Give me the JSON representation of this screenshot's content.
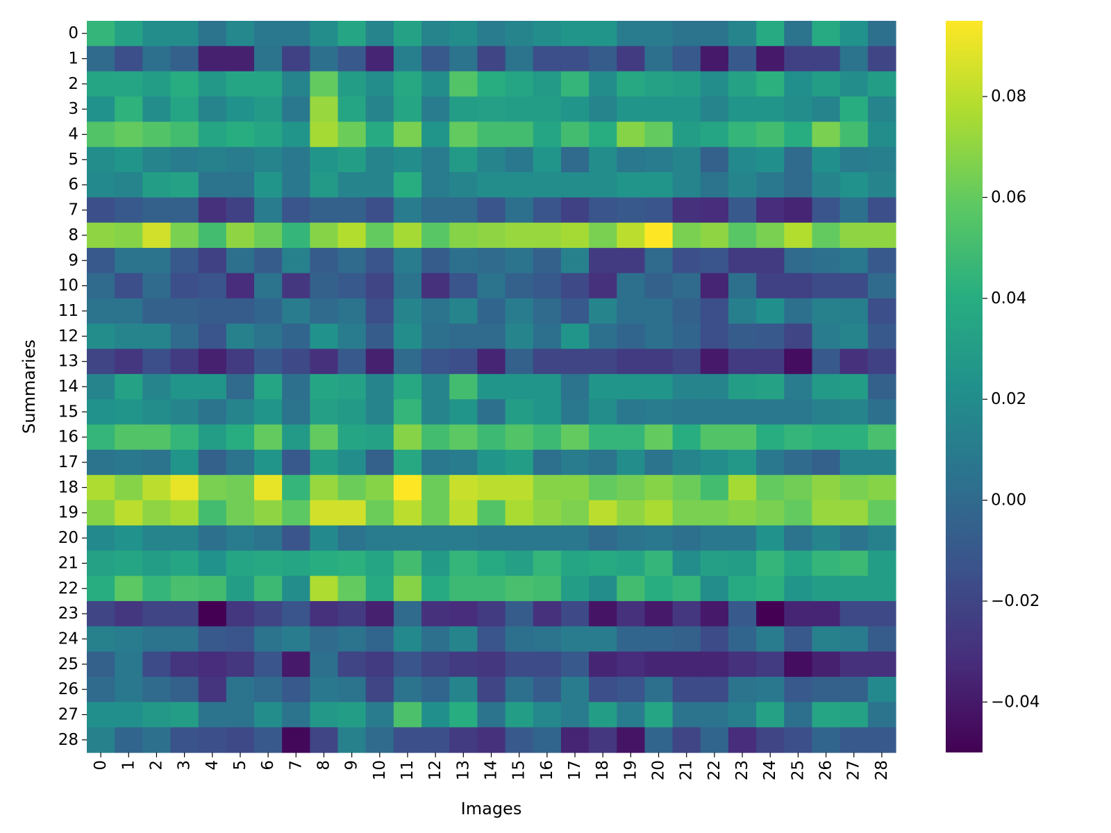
{
  "chart_data": {
    "type": "heatmap",
    "title": "",
    "xlabel": "Images",
    "ylabel": "Summaries",
    "x_categories": [
      "0",
      "1",
      "2",
      "3",
      "4",
      "5",
      "6",
      "7",
      "8",
      "9",
      "10",
      "11",
      "12",
      "13",
      "14",
      "15",
      "16",
      "17",
      "18",
      "19",
      "20",
      "21",
      "22",
      "23",
      "24",
      "25",
      "26",
      "27",
      "28"
    ],
    "y_categories": [
      "0",
      "1",
      "2",
      "3",
      "4",
      "5",
      "6",
      "7",
      "8",
      "9",
      "10",
      "11",
      "12",
      "13",
      "14",
      "15",
      "16",
      "17",
      "18",
      "19",
      "20",
      "21",
      "22",
      "23",
      "24",
      "25",
      "26",
      "27",
      "28"
    ],
    "colormap": "viridis",
    "vmin": -0.05,
    "vmax": 0.095,
    "colorbar_ticks": [
      0.08,
      0.06,
      0.04,
      0.02,
      0.0,
      -0.02,
      -0.04
    ],
    "colorbar_tick_labels": [
      "0.08",
      "0.06",
      "0.04",
      "0.02",
      "0.00",
      "−0.02",
      "−0.04"
    ],
    "values": [
      [
        0.045,
        0.033,
        0.02,
        0.02,
        0.005,
        0.017,
        0.008,
        0.008,
        0.02,
        0.035,
        0.015,
        0.033,
        0.015,
        0.02,
        0.01,
        0.015,
        0.02,
        0.025,
        0.025,
        0.01,
        0.01,
        0.005,
        0.005,
        0.015,
        0.038,
        0.005,
        0.038,
        0.023,
        0.003
      ],
      [
        0.0,
        -0.015,
        0.003,
        -0.005,
        -0.037,
        -0.037,
        0.005,
        -0.022,
        0.003,
        -0.01,
        -0.035,
        0.012,
        -0.01,
        0.005,
        -0.02,
        0.005,
        -0.015,
        -0.015,
        -0.008,
        -0.025,
        0.003,
        -0.01,
        -0.04,
        -0.01,
        -0.04,
        -0.022,
        -0.022,
        0.005,
        -0.02
      ],
      [
        0.035,
        0.035,
        0.03,
        0.04,
        0.027,
        0.035,
        0.035,
        0.015,
        0.06,
        0.03,
        0.02,
        0.037,
        0.02,
        0.055,
        0.04,
        0.035,
        0.028,
        0.045,
        0.02,
        0.037,
        0.033,
        0.03,
        0.02,
        0.033,
        0.042,
        0.022,
        0.03,
        0.02,
        0.03
      ],
      [
        0.023,
        0.043,
        0.02,
        0.035,
        0.015,
        0.023,
        0.028,
        0.008,
        0.072,
        0.035,
        0.015,
        0.035,
        0.01,
        0.03,
        0.032,
        0.03,
        0.03,
        0.025,
        0.015,
        0.025,
        0.025,
        0.025,
        0.015,
        0.025,
        0.025,
        0.02,
        0.015,
        0.04,
        0.015
      ],
      [
        0.055,
        0.06,
        0.055,
        0.05,
        0.035,
        0.04,
        0.035,
        0.025,
        0.075,
        0.062,
        0.038,
        0.065,
        0.025,
        0.06,
        0.05,
        0.05,
        0.035,
        0.05,
        0.04,
        0.068,
        0.06,
        0.03,
        0.035,
        0.045,
        0.05,
        0.04,
        0.065,
        0.05,
        0.02
      ],
      [
        0.02,
        0.025,
        0.015,
        0.01,
        0.013,
        0.01,
        0.015,
        0.008,
        0.025,
        0.03,
        0.015,
        0.02,
        0.01,
        0.028,
        0.015,
        0.008,
        0.025,
        0.0,
        0.02,
        0.008,
        0.01,
        0.015,
        -0.005,
        0.018,
        0.022,
        0.0,
        0.022,
        0.01,
        0.012
      ],
      [
        0.018,
        0.015,
        0.03,
        0.033,
        0.005,
        0.005,
        0.025,
        0.008,
        0.028,
        0.015,
        0.015,
        0.04,
        0.01,
        0.015,
        0.02,
        0.02,
        0.02,
        0.02,
        0.02,
        0.025,
        0.025,
        0.015,
        0.005,
        0.015,
        0.008,
        0.0,
        0.015,
        0.023,
        0.015
      ],
      [
        -0.015,
        -0.01,
        -0.005,
        -0.005,
        -0.03,
        -0.022,
        0.01,
        -0.012,
        -0.005,
        -0.005,
        -0.015,
        0.01,
        0.0,
        0.0,
        -0.012,
        0.003,
        -0.012,
        -0.022,
        -0.012,
        -0.01,
        -0.012,
        -0.03,
        -0.032,
        -0.01,
        -0.032,
        -0.035,
        -0.012,
        0.003,
        -0.015
      ],
      [
        0.07,
        0.068,
        0.085,
        0.065,
        0.05,
        0.07,
        0.062,
        0.045,
        0.068,
        0.078,
        0.06,
        0.075,
        0.057,
        0.068,
        0.07,
        0.072,
        0.072,
        0.075,
        0.065,
        0.08,
        0.095,
        0.065,
        0.07,
        0.057,
        0.065,
        0.078,
        0.06,
        0.07,
        0.07
      ],
      [
        -0.01,
        0.005,
        0.005,
        -0.01,
        -0.022,
        0.003,
        -0.008,
        0.013,
        -0.008,
        0.0,
        -0.012,
        0.01,
        -0.008,
        0.003,
        0.0,
        0.005,
        -0.005,
        0.013,
        -0.025,
        -0.025,
        0.0,
        -0.015,
        -0.012,
        -0.025,
        -0.025,
        0.0,
        0.003,
        0.008,
        -0.01
      ],
      [
        0.0,
        -0.015,
        0.0,
        -0.015,
        -0.012,
        -0.032,
        0.005,
        -0.027,
        -0.005,
        -0.01,
        -0.02,
        0.005,
        -0.03,
        -0.012,
        0.005,
        -0.005,
        -0.01,
        -0.018,
        -0.03,
        0.003,
        -0.005,
        0.0,
        -0.035,
        0.003,
        -0.022,
        -0.022,
        -0.017,
        -0.017,
        0.0
      ],
      [
        0.005,
        0.005,
        -0.005,
        -0.005,
        -0.008,
        -0.008,
        -0.003,
        0.01,
        0.0,
        0.005,
        -0.015,
        0.015,
        0.005,
        0.015,
        -0.003,
        0.01,
        0.0,
        -0.01,
        0.015,
        0.003,
        0.003,
        -0.005,
        -0.015,
        0.012,
        0.022,
        0.003,
        0.013,
        0.012,
        -0.015
      ],
      [
        0.02,
        0.015,
        0.015,
        0.0,
        -0.012,
        0.013,
        0.005,
        -0.003,
        0.023,
        0.01,
        -0.008,
        0.02,
        0.003,
        0.0,
        0.0,
        0.015,
        0.003,
        0.025,
        0.003,
        -0.003,
        0.003,
        -0.003,
        -0.015,
        -0.008,
        -0.01,
        -0.02,
        0.01,
        0.015,
        -0.01
      ],
      [
        -0.02,
        -0.027,
        -0.015,
        -0.025,
        -0.037,
        -0.025,
        -0.01,
        -0.018,
        -0.03,
        -0.01,
        -0.037,
        0.0,
        -0.012,
        -0.015,
        -0.035,
        -0.005,
        -0.02,
        -0.02,
        -0.02,
        -0.025,
        -0.025,
        -0.02,
        -0.04,
        -0.025,
        -0.025,
        -0.045,
        -0.01,
        -0.03,
        -0.022
      ],
      [
        0.015,
        0.033,
        0.015,
        0.025,
        0.025,
        0.0,
        0.035,
        0.003,
        0.035,
        0.033,
        0.015,
        0.037,
        0.015,
        0.05,
        0.025,
        0.025,
        0.025,
        0.005,
        0.025,
        0.025,
        0.025,
        0.015,
        0.015,
        0.03,
        0.033,
        0.01,
        0.028,
        0.03,
        -0.005
      ],
      [
        0.023,
        0.025,
        0.02,
        0.015,
        0.005,
        0.015,
        0.025,
        0.005,
        0.032,
        0.028,
        0.015,
        0.045,
        0.015,
        0.025,
        0.003,
        0.03,
        0.025,
        0.008,
        0.02,
        0.008,
        0.01,
        0.008,
        0.008,
        0.008,
        0.008,
        0.008,
        0.013,
        0.015,
        0.003
      ],
      [
        0.045,
        0.055,
        0.055,
        0.045,
        0.03,
        0.04,
        0.06,
        0.028,
        0.06,
        0.035,
        0.033,
        0.068,
        0.05,
        0.058,
        0.048,
        0.055,
        0.048,
        0.06,
        0.045,
        0.045,
        0.06,
        0.04,
        0.055,
        0.055,
        0.04,
        0.045,
        0.042,
        0.042,
        0.052
      ],
      [
        0.005,
        0.008,
        0.005,
        0.025,
        -0.005,
        0.005,
        0.025,
        -0.01,
        0.03,
        0.02,
        -0.005,
        0.037,
        0.008,
        0.01,
        0.025,
        0.03,
        0.003,
        0.01,
        0.005,
        0.02,
        0.005,
        0.015,
        0.02,
        0.027,
        0.008,
        0.0,
        -0.005,
        0.015,
        0.015
      ],
      [
        0.077,
        0.068,
        0.08,
        0.09,
        0.065,
        0.063,
        0.09,
        0.045,
        0.072,
        0.062,
        0.068,
        0.095,
        0.062,
        0.083,
        0.08,
        0.08,
        0.068,
        0.068,
        0.06,
        0.063,
        0.068,
        0.062,
        0.05,
        0.075,
        0.06,
        0.063,
        0.07,
        0.065,
        0.068
      ],
      [
        0.068,
        0.08,
        0.07,
        0.075,
        0.05,
        0.063,
        0.07,
        0.058,
        0.085,
        0.085,
        0.062,
        0.08,
        0.062,
        0.08,
        0.055,
        0.076,
        0.07,
        0.066,
        0.08,
        0.07,
        0.076,
        0.065,
        0.065,
        0.068,
        0.065,
        0.06,
        0.072,
        0.072,
        0.06
      ],
      [
        0.018,
        0.023,
        0.015,
        0.015,
        0.003,
        0.01,
        0.005,
        -0.012,
        0.018,
        0.005,
        0.01,
        0.01,
        0.01,
        0.01,
        0.008,
        0.008,
        0.008,
        0.008,
        0.0,
        0.005,
        0.008,
        0.003,
        0.008,
        0.008,
        0.023,
        0.005,
        0.015,
        0.005,
        0.013
      ],
      [
        0.033,
        0.035,
        0.03,
        0.035,
        0.023,
        0.035,
        0.037,
        0.035,
        0.04,
        0.042,
        0.035,
        0.05,
        0.028,
        0.045,
        0.038,
        0.032,
        0.045,
        0.035,
        0.038,
        0.035,
        0.045,
        0.02,
        0.032,
        0.03,
        0.045,
        0.035,
        0.045,
        0.048,
        0.03
      ],
      [
        0.04,
        0.058,
        0.045,
        0.052,
        0.05,
        0.03,
        0.048,
        0.02,
        0.077,
        0.06,
        0.038,
        0.068,
        0.038,
        0.048,
        0.048,
        0.052,
        0.05,
        0.03,
        0.02,
        0.05,
        0.04,
        0.045,
        0.02,
        0.038,
        0.042,
        0.025,
        0.03,
        0.03,
        0.03
      ],
      [
        -0.02,
        -0.027,
        -0.02,
        -0.02,
        -0.05,
        -0.027,
        -0.02,
        -0.012,
        -0.03,
        -0.025,
        -0.037,
        0.0,
        -0.03,
        -0.032,
        -0.025,
        -0.008,
        -0.03,
        -0.018,
        -0.042,
        -0.03,
        -0.04,
        -0.027,
        -0.04,
        -0.01,
        -0.05,
        -0.035,
        -0.035,
        -0.018,
        -0.018
      ],
      [
        0.013,
        0.01,
        0.005,
        0.005,
        -0.01,
        -0.012,
        0.005,
        0.01,
        0.0,
        0.005,
        -0.003,
        0.018,
        0.003,
        0.015,
        -0.012,
        0.003,
        0.005,
        0.01,
        0.01,
        -0.003,
        -0.003,
        -0.005,
        -0.017,
        -0.003,
        0.01,
        -0.01,
        0.013,
        0.01,
        -0.008
      ],
      [
        -0.005,
        0.008,
        -0.017,
        -0.028,
        -0.032,
        -0.027,
        -0.012,
        -0.04,
        0.003,
        -0.02,
        -0.025,
        -0.012,
        -0.02,
        -0.025,
        -0.027,
        -0.017,
        -0.017,
        -0.01,
        -0.035,
        -0.032,
        -0.035,
        -0.035,
        -0.035,
        -0.03,
        -0.025,
        -0.045,
        -0.037,
        -0.03,
        -0.03
      ],
      [
        0.0,
        0.008,
        0.0,
        -0.005,
        -0.028,
        0.005,
        0.0,
        -0.01,
        0.008,
        0.005,
        -0.02,
        0.005,
        -0.003,
        0.015,
        -0.02,
        0.003,
        -0.008,
        0.01,
        -0.015,
        -0.012,
        0.003,
        -0.017,
        -0.017,
        0.005,
        0.008,
        -0.01,
        -0.005,
        -0.005,
        0.018
      ],
      [
        0.022,
        0.022,
        0.027,
        0.03,
        0.005,
        0.005,
        0.02,
        0.005,
        0.027,
        0.03,
        0.01,
        0.053,
        0.022,
        0.04,
        0.005,
        0.03,
        0.017,
        0.01,
        0.03,
        0.01,
        0.035,
        0.005,
        0.005,
        0.012,
        0.033,
        0.003,
        0.035,
        0.033,
        0.005
      ],
      [
        0.013,
        -0.003,
        0.003,
        -0.013,
        -0.015,
        -0.018,
        -0.01,
        -0.047,
        -0.02,
        0.013,
        0.0,
        -0.015,
        -0.015,
        -0.025,
        -0.03,
        -0.01,
        -0.003,
        -0.035,
        -0.027,
        -0.042,
        -0.003,
        -0.02,
        -0.003,
        -0.032,
        -0.02,
        -0.015,
        -0.003,
        -0.01,
        -0.01
      ]
    ]
  }
}
